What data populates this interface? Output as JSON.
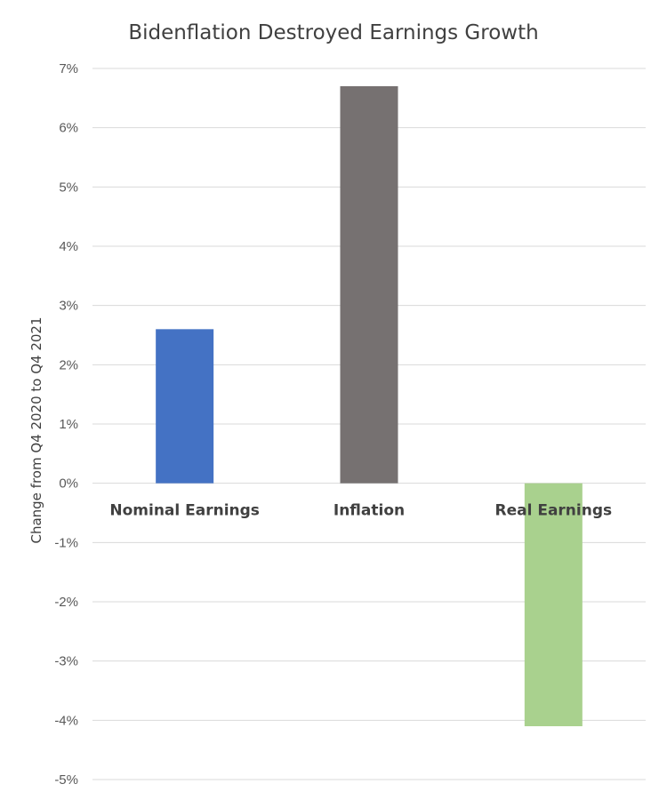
{
  "chart_data": {
    "type": "bar",
    "title": "Bidenflation Destroyed Earnings Growth",
    "xlabel": "",
    "ylabel": "Change from Q4 2020 to Q4 2021",
    "categories": [
      "Nominal Earnings",
      "Inflation",
      "Real Earnings"
    ],
    "values": [
      2.6,
      6.7,
      -4.1
    ],
    "colors": [
      "#4472c4",
      "#767171",
      "#a9d18e"
    ],
    "ylim": [
      -5,
      7
    ],
    "yticks": [
      7,
      6,
      5,
      4,
      3,
      2,
      1,
      0,
      -1,
      -2,
      -3,
      -4,
      -5
    ],
    "ytick_labels": [
      "7%",
      "6%",
      "5%",
      "4%",
      "3%",
      "2%",
      "1%",
      "0%",
      "-1%",
      "-2%",
      "-3%",
      "-4%",
      "-5%"
    ],
    "grid": true,
    "legend": "none"
  }
}
